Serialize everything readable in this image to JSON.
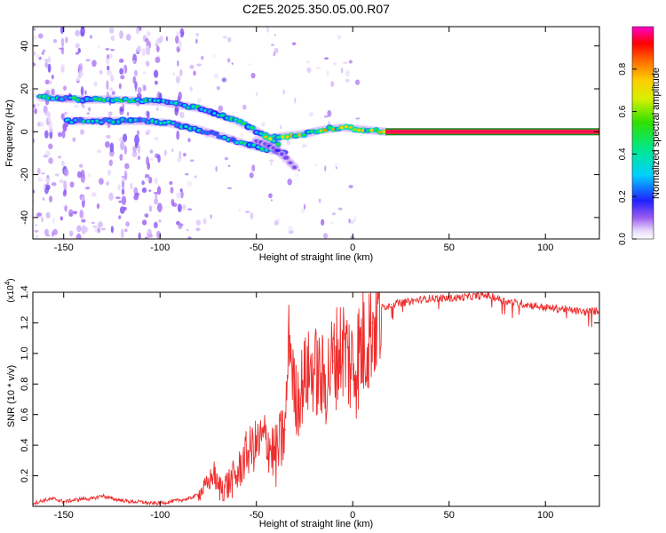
{
  "title": "C2E5.2025.350.05.00.R07",
  "chart_data": [
    {
      "type": "heatmap",
      "xlabel": "Height of straight line (km)",
      "ylabel": "Frequency (Hz)",
      "xlim": [
        -166,
        128
      ],
      "ylim": [
        -50,
        49
      ],
      "xticks": [
        -150,
        -100,
        -50,
        0,
        50,
        100
      ],
      "yticks": [
        -40,
        -20,
        0,
        20,
        40
      ],
      "colorbar": {
        "label": "Normalized spectral amplitude",
        "range": [
          0,
          1
        ],
        "ticks": [
          "0.0",
          "0.2",
          "0.4",
          "0.6",
          "0.8"
        ],
        "tick_values": [
          0,
          0.2,
          0.4,
          0.6,
          0.8
        ]
      },
      "features": [
        {
          "name": "upper-band",
          "x": [
            -162,
            -140,
            -125,
            -100,
            -80,
            -60,
            -45,
            -38
          ],
          "y": [
            16,
            15,
            15,
            14,
            11,
            5,
            -2,
            -6
          ],
          "amplitude": 0.45
        },
        {
          "name": "lower-band",
          "x": [
            -148,
            -130,
            -110,
            -95,
            -80,
            -65,
            -55,
            -45,
            -35
          ],
          "y": [
            5,
            5,
            5,
            4,
            1,
            -3,
            -6,
            -8,
            -10
          ],
          "amplitude": 0.4
        },
        {
          "name": "tail-band",
          "x": [
            -50,
            -40,
            -33,
            -28
          ],
          "y": [
            -4,
            -8,
            -14,
            -18
          ],
          "amplitude": 0.15
        },
        {
          "name": "converging-band",
          "x": [
            -45,
            -35,
            -25,
            -15,
            -5,
            5,
            17
          ],
          "y": [
            -3,
            -2,
            -1,
            1,
            2,
            1,
            0
          ],
          "amplitude": 0.7
        },
        {
          "name": "steady-line",
          "x": [
            17,
            128
          ],
          "y": [
            0,
            0
          ],
          "amplitude": 0.95
        }
      ]
    },
    {
      "type": "line",
      "xlabel": "Height of straight line (km)",
      "ylabel": "SNR (10 * v/v)",
      "scale_label": "(x10",
      "scale_exponent": "4",
      "xlim": [
        -166,
        128
      ],
      "ylim": [
        0,
        1.4
      ],
      "xticks": [
        -150,
        -100,
        -50,
        0,
        50,
        100
      ],
      "yticks": [
        "0.2",
        "0.4",
        "0.6",
        "0.8",
        "1.0",
        "1.2",
        "1.4"
      ],
      "ytick_values": [
        0.2,
        0.4,
        0.6,
        0.8,
        1.0,
        1.2,
        1.4
      ],
      "series": [
        {
          "name": "SNR",
          "color": "#ee2d2d",
          "x": [
            -166,
            -160,
            -155,
            -150,
            -145,
            -140,
            -135,
            -130,
            -125,
            -120,
            -115,
            -110,
            -105,
            -100,
            -95,
            -90,
            -85,
            -80,
            -75,
            -72,
            -70,
            -65,
            -60,
            -55,
            -50,
            -45,
            -40,
            -35,
            -33,
            -30,
            -28,
            -25,
            -20,
            -15,
            -10,
            -5,
            0,
            5,
            10,
            15,
            20,
            25,
            30,
            40,
            50,
            60,
            70,
            80,
            90,
            100,
            110,
            120,
            128
          ],
          "y": [
            0.02,
            0.04,
            0.05,
            0.03,
            0.04,
            0.05,
            0.05,
            0.07,
            0.05,
            0.04,
            0.03,
            0.03,
            0.02,
            0.02,
            0.03,
            0.04,
            0.05,
            0.08,
            0.15,
            0.22,
            0.12,
            0.14,
            0.2,
            0.35,
            0.4,
            0.45,
            0.32,
            0.5,
            1.15,
            0.7,
            0.72,
            0.85,
            0.9,
            0.8,
            0.95,
            1.05,
            0.9,
            1.05,
            1.2,
            1.3,
            1.32,
            1.33,
            1.34,
            1.36,
            1.36,
            1.37,
            1.38,
            1.34,
            1.32,
            1.3,
            1.29,
            1.27,
            1.28
          ]
        }
      ]
    }
  ]
}
